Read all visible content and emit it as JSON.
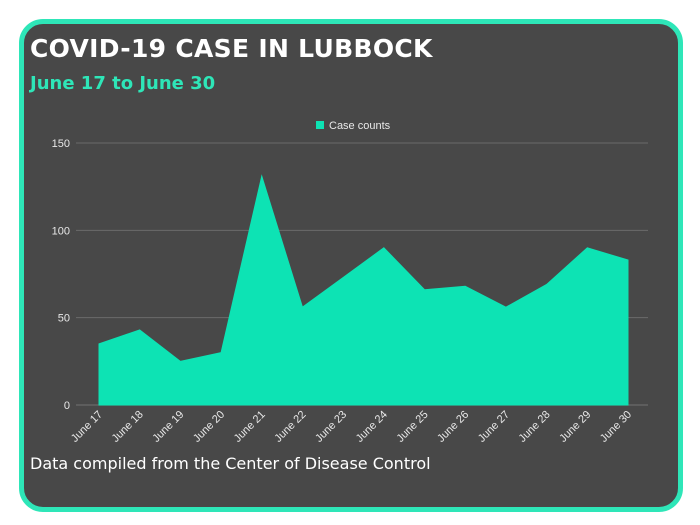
{
  "title": "COVID-19 CASE IN LUBBOCK",
  "subtitle": "June 17 to June 30",
  "footer": "Data compiled from the Center of Disease Control",
  "colors": {
    "background": "#ffffff",
    "card": "#484848",
    "accent": "#2ee6b8",
    "series_fill": "#0de3b4",
    "grid": "#6a6a6a",
    "text": "#ffffff"
  },
  "chart_data": {
    "type": "area",
    "categories": [
      "June 17",
      "June 18",
      "June 19",
      "June 20",
      "June 21",
      "June 22",
      "June 23",
      "June 24",
      "June 25",
      "June 26",
      "June 27",
      "June 28",
      "June 29",
      "June 30"
    ],
    "series": [
      {
        "name": "Case counts",
        "values": [
          35,
          43,
          25,
          30,
          131,
          56,
          73,
          90,
          66,
          68,
          56,
          69,
          90,
          83
        ]
      }
    ],
    "y_ticks": [
      0,
      50,
      100,
      150
    ],
    "ylim": [
      0,
      150
    ],
    "grid": true,
    "legend_position": "top"
  }
}
